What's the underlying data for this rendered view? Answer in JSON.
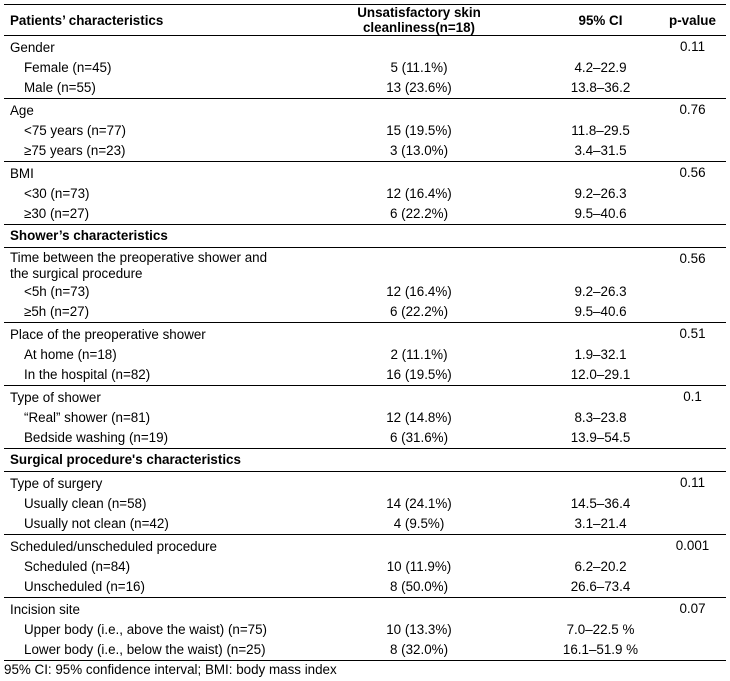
{
  "headers": [
    "Patients’ characteristics",
    "Unsatisfactory skin cleanliness(n=18)",
    "95% CI",
    "p-value"
  ],
  "sections": [
    {
      "title": "",
      "groups": [
        {
          "label": "Gender",
          "p": "0.11",
          "rows": [
            {
              "label": "Female (n=45)",
              "value": "5 (11.1%)",
              "ci": "4.2–22.9"
            },
            {
              "label": "Male (n=55)",
              "value": "13 (23.6%)",
              "ci": "13.8–36.2"
            }
          ]
        },
        {
          "label": "Age",
          "p": "0.76",
          "rows": [
            {
              "label": "<75 years (n=77)",
              "value": "15 (19.5%)",
              "ci": "11.8–29.5"
            },
            {
              "label": "≥75 years (n=23)",
              "value": "3 (13.0%)",
              "ci": "3.4–31.5"
            }
          ]
        },
        {
          "label": "BMI",
          "p": "0.56",
          "rows": [
            {
              "label": "<30 (n=73)",
              "value": "12 (16.4%)",
              "ci": "9.2–26.3"
            },
            {
              "label": "≥30 (n=27)",
              "value": "6 (22.2%)",
              "ci": "9.5–40.6"
            }
          ]
        }
      ]
    },
    {
      "title": "Shower’s characteristics",
      "groups": [
        {
          "label": "Time between the preoperative shower and",
          "label2": "the surgical procedure",
          "p": "0.56",
          "rows": [
            {
              "label": "<5h (n=73)",
              "value": "12 (16.4%)",
              "ci": "9.2–26.3"
            },
            {
              "label": "≥5h (n=27)",
              "value": "6 (22.2%)",
              "ci": "9.5–40.6"
            }
          ]
        },
        {
          "label": "Place of the preoperative shower",
          "p": "0.51",
          "rows": [
            {
              "label": "At home (n=18)",
              "value": "2 (11.1%)",
              "ci": "1.9–32.1"
            },
            {
              "label": "In the hospital (n=82)",
              "value": "16 (19.5%)",
              "ci": "12.0–29.1"
            }
          ]
        },
        {
          "label": "Type of shower",
          "p": "0.1",
          "rows": [
            {
              "label": "“Real” shower (n=81)",
              "value": "12 (14.8%)",
              "ci": "8.3–23.8"
            },
            {
              "label": "Bedside washing (n=19)",
              "value": "6 (31.6%)",
              "ci": "13.9–54.5"
            }
          ]
        }
      ]
    },
    {
      "title": "Surgical procedure's characteristics",
      "groups": [
        {
          "label": "Type of surgery",
          "p": "0.11",
          "rows": [
            {
              "label": "Usually clean (n=58)",
              "value": "14 (24.1%)",
              "ci": "14.5–36.4"
            },
            {
              "label": "Usually not clean (n=42)",
              "value": "4 (9.5%)",
              "ci": "3.1–21.4"
            }
          ]
        },
        {
          "label": "Scheduled/unscheduled procedure",
          "p": "0.001",
          "rows": [
            {
              "label": "Scheduled (n=84)",
              "value": "10 (11.9%)",
              "ci": "6.2–20.2"
            },
            {
              "label": "Unscheduled (n=16)",
              "value": "8 (50.0%)",
              "ci": "26.6–73.4"
            }
          ]
        },
        {
          "label": "Incision site",
          "p": "0.07",
          "rows": [
            {
              "label": "Upper body (i.e., above the waist) (n=75)",
              "value": "10 (13.3%)",
              "ci": "7.0–22.5 %"
            },
            {
              "label": "Lower body (i.e., below the waist) (n=25)",
              "value": "8 (32.0%)",
              "ci": "16.1–51.9 %"
            }
          ]
        }
      ]
    }
  ],
  "footnote": "95% CI: 95% confidence interval; BMI: body mass index"
}
